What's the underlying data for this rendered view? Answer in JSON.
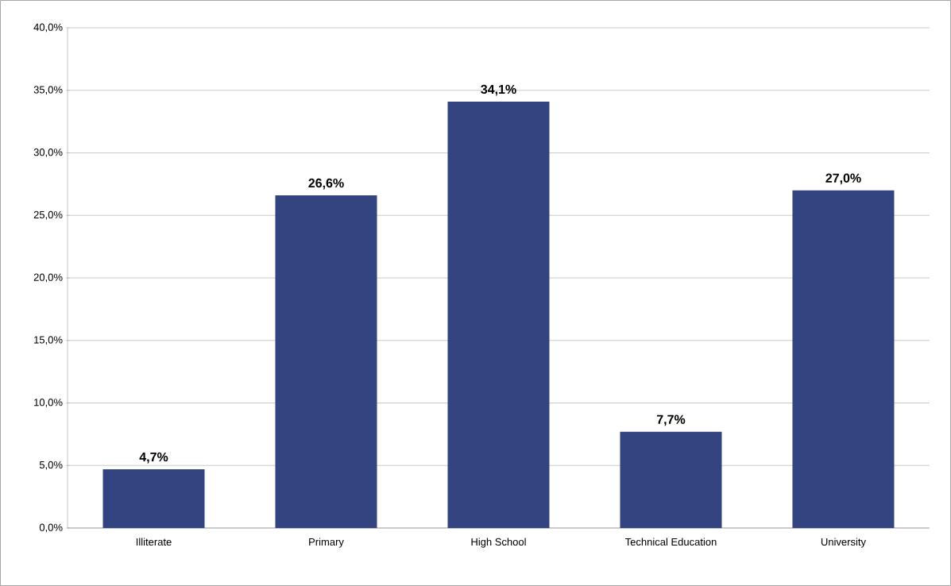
{
  "chart_data": {
    "type": "bar",
    "categories": [
      "Illiterate",
      "Primary",
      "High School",
      "Technical Education",
      "University"
    ],
    "values": [
      4.7,
      26.6,
      34.1,
      7.7,
      27.0
    ],
    "value_labels": [
      "4,7%",
      "26,6%",
      "34,1%",
      "7,7%",
      "27,0%"
    ],
    "color": "#334480",
    "ylim": [
      0,
      40
    ],
    "yticks": [
      {
        "value": 0,
        "label": "0,0%"
      },
      {
        "value": 5,
        "label": "5,0%"
      },
      {
        "value": 10,
        "label": "10,0%"
      },
      {
        "value": 15,
        "label": "15,0%"
      },
      {
        "value": 20,
        "label": "20,0%"
      },
      {
        "value": 25,
        "label": "25,0%"
      },
      {
        "value": 30,
        "label": "30,0%"
      },
      {
        "value": 35,
        "label": "35,0%"
      },
      {
        "value": 40,
        "label": "40,0%"
      }
    ],
    "grid": "y"
  }
}
